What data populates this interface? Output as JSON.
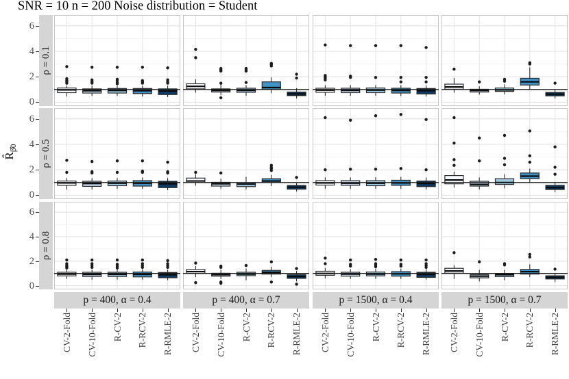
{
  "title": "SNR = 10 n = 200 Noise distribution = Student",
  "ylabel": {
    "base": "R̂",
    "sub": "β̂0"
  },
  "chart_data": {
    "type": "boxplot",
    "title": "SNR = 10 n = 200 Noise distribution = Student",
    "ylabel": "R̂_β̂0",
    "facet_row_variable": "ρ",
    "facet_col_variable": "p, α",
    "row_facets": [
      "ρ = 0.1",
      "ρ = 0.5",
      "ρ = 0.8"
    ],
    "col_facets": [
      "p = 400, α = 0.4",
      "p = 400, α = 0.7",
      "p = 1500, α = 0.4",
      "p = 1500, α = 0.7"
    ],
    "methods": [
      "CV-2-Fold",
      "CV-10-Fold",
      "R-CV-2",
      "R-RCV-2",
      "R-RMLE-2"
    ],
    "box_fills": [
      "#f7fbff",
      "#c6dbef",
      "#9ecae1",
      "#4292c6",
      "#0d3a66"
    ],
    "box_border": "#2a2a2a",
    "outlier_color": "#1c1c1c",
    "reference_line": 1,
    "yticks": [
      0,
      2,
      4,
      6
    ],
    "ylim": [
      -0.3,
      6.85
    ],
    "grid": "major+minor",
    "box_keys": [
      "q1",
      "median",
      "q3",
      "whisker_low",
      "whisker_high",
      "outliers"
    ],
    "panels": [
      {
        "row": 0,
        "col": 0,
        "boxes": [
          [
            0.75,
            0.97,
            1.12,
            0.45,
            1.3,
            [
              1.5,
              1.6,
              1.7,
              1.85,
              2.8
            ]
          ],
          [
            0.72,
            0.9,
            1.05,
            0.5,
            1.3,
            [
              1.5,
              1.6,
              1.75,
              2.75
            ]
          ],
          [
            0.72,
            0.92,
            1.08,
            0.5,
            1.3,
            [
              1.45,
              1.55,
              1.7,
              1.8,
              2.75
            ]
          ],
          [
            0.68,
            0.9,
            1.08,
            0.45,
            1.3,
            [
              1.5,
              1.6,
              1.7,
              2.75
            ]
          ],
          [
            0.6,
            0.88,
            1.05,
            0.4,
            1.3,
            [
              1.5,
              1.6,
              1.75,
              2.7
            ]
          ]
        ]
      },
      {
        "row": 0,
        "col": 1,
        "boxes": [
          [
            1.05,
            1.25,
            1.45,
            0.75,
            1.8,
            [
              3.5,
              4.15
            ]
          ],
          [
            0.8,
            0.92,
            1.05,
            0.55,
            1.4,
            [
              0.35,
              1.5,
              2.45,
              2.55,
              2.65
            ]
          ],
          [
            0.78,
            0.93,
            1.1,
            0.5,
            1.35,
            [
              1.55,
              2.45,
              2.55,
              2.65
            ]
          ],
          [
            1.0,
            1.15,
            1.6,
            0.7,
            1.95,
            [
              2.85,
              2.95,
              3.05
            ]
          ],
          [
            0.52,
            0.65,
            0.8,
            0.3,
            1.1,
            [
              1.9,
              2.2
            ]
          ]
        ]
      },
      {
        "row": 0,
        "col": 2,
        "boxes": [
          [
            0.78,
            0.95,
            1.1,
            0.5,
            1.35,
            [
              1.75,
              1.9,
              2.0,
              2.1,
              4.5
            ]
          ],
          [
            0.75,
            0.93,
            1.1,
            0.5,
            1.35,
            [
              1.95,
              2.05,
              4.45
            ]
          ],
          [
            0.75,
            0.95,
            1.12,
            0.5,
            1.35,
            [
              1.95,
              4.45
            ]
          ],
          [
            0.72,
            0.93,
            1.1,
            0.48,
            1.35,
            [
              1.6,
              1.95,
              4.45
            ]
          ],
          [
            0.65,
            0.9,
            1.08,
            0.45,
            1.32,
            [
              1.6,
              1.95,
              4.3
            ]
          ]
        ]
      },
      {
        "row": 0,
        "col": 3,
        "boxes": [
          [
            1.02,
            1.2,
            1.42,
            0.75,
            1.9,
            [
              2.6
            ]
          ],
          [
            0.8,
            0.92,
            1.02,
            0.6,
            1.25,
            [
              1.6
            ]
          ],
          [
            0.85,
            0.97,
            1.12,
            0.62,
            1.4,
            [
              1.65,
              1.8
            ]
          ],
          [
            1.35,
            1.6,
            1.88,
            1.0,
            2.75,
            [
              3.0,
              3.1
            ]
          ],
          [
            0.5,
            0.63,
            0.77,
            0.3,
            1.0,
            [
              1.5
            ]
          ]
        ]
      },
      {
        "row": 1,
        "col": 0,
        "boxes": [
          [
            0.78,
            0.97,
            1.12,
            0.45,
            1.35,
            [
              1.8,
              2.75
            ]
          ],
          [
            0.7,
            0.92,
            1.1,
            0.45,
            1.35,
            [
              1.75,
              1.85,
              2.65
            ]
          ],
          [
            0.75,
            0.95,
            1.12,
            0.5,
            1.35,
            [
              1.8,
              2.7
            ]
          ],
          [
            0.72,
            0.95,
            1.15,
            0.5,
            1.4,
            [
              1.8,
              1.9,
              2.7
            ]
          ],
          [
            0.6,
            0.9,
            1.1,
            0.4,
            1.35,
            [
              1.75,
              1.85,
              2.6
            ]
          ]
        ]
      },
      {
        "row": 1,
        "col": 1,
        "boxes": [
          [
            1.0,
            1.12,
            1.35,
            0.75,
            1.65,
            [
              1.8
            ]
          ],
          [
            0.72,
            0.9,
            1.02,
            0.5,
            1.3,
            [
              1.75
            ]
          ],
          [
            0.68,
            0.88,
            1.0,
            0.45,
            1.45,
            []
          ],
          [
            1.0,
            1.12,
            1.3,
            0.72,
            1.6,
            [
              1.95,
              2.1,
              2.2,
              2.35
            ]
          ],
          [
            0.48,
            0.63,
            0.77,
            0.3,
            0.95,
            [
              1.4
            ]
          ]
        ]
      },
      {
        "row": 1,
        "col": 2,
        "boxes": [
          [
            0.8,
            0.97,
            1.15,
            0.5,
            1.4,
            [
              2.0,
              6.1
            ]
          ],
          [
            0.78,
            0.95,
            1.15,
            0.5,
            1.4,
            [
              2.05,
              5.9
            ]
          ],
          [
            0.75,
            0.95,
            1.15,
            0.5,
            1.42,
            [
              2.05,
              6.25
            ]
          ],
          [
            0.78,
            0.97,
            1.18,
            0.5,
            1.45,
            [
              2.1,
              6.35
            ]
          ],
          [
            0.68,
            0.93,
            1.12,
            0.45,
            1.4,
            [
              2.0,
              5.95
            ]
          ]
        ]
      },
      {
        "row": 1,
        "col": 3,
        "boxes": [
          [
            0.9,
            1.2,
            1.55,
            0.6,
            1.85,
            [
              2.35,
              2.8,
              4.1,
              6.1
            ]
          ],
          [
            0.72,
            0.85,
            1.1,
            0.45,
            1.4,
            [
              2.7,
              4.5
            ]
          ],
          [
            0.85,
            1.0,
            1.3,
            0.55,
            1.65,
            [
              2.4,
              2.9,
              4.7
            ]
          ],
          [
            1.3,
            1.5,
            1.75,
            1.0,
            2.1,
            [
              2.6,
              3.1,
              5.05
            ]
          ],
          [
            0.45,
            0.6,
            0.78,
            0.25,
            1.05,
            [
              1.65,
              2.2,
              3.8
            ]
          ]
        ]
      },
      {
        "row": 2,
        "col": 0,
        "boxes": [
          [
            0.8,
            0.95,
            1.1,
            0.55,
            1.3,
            [
              1.45,
              1.55,
              1.65,
              1.8,
              2.1
            ]
          ],
          [
            0.75,
            0.92,
            1.1,
            0.5,
            1.3,
            [
              1.5,
              1.65,
              1.8,
              2.1
            ]
          ],
          [
            0.75,
            0.93,
            1.1,
            0.5,
            1.32,
            [
              1.45,
              1.6,
              1.75,
              2.1
            ]
          ],
          [
            0.72,
            0.93,
            1.12,
            0.5,
            1.35,
            [
              1.5,
              1.65,
              1.8,
              2.1
            ]
          ],
          [
            0.65,
            0.9,
            1.08,
            0.45,
            1.3,
            [
              1.5,
              1.65,
              1.8,
              2.05
            ]
          ]
        ]
      },
      {
        "row": 2,
        "col": 1,
        "boxes": [
          [
            1.0,
            1.15,
            1.32,
            0.7,
            1.6,
            [
              0.25,
              1.85
            ]
          ],
          [
            0.78,
            0.9,
            1.02,
            0.55,
            1.3,
            [
              0.2,
              0.3,
              1.5,
              1.6
            ]
          ],
          [
            0.82,
            0.95,
            1.1,
            0.45,
            1.4,
            [
              1.65
            ]
          ],
          [
            0.95,
            1.1,
            1.25,
            0.7,
            1.55,
            [
              0.3,
              1.95
            ]
          ],
          [
            0.6,
            0.75,
            0.9,
            0.35,
            1.2,
            [
              0.12,
              1.4
            ]
          ]
        ]
      },
      {
        "row": 2,
        "col": 2,
        "boxes": [
          [
            0.85,
            1.0,
            1.18,
            0.6,
            1.45,
            [
              1.8,
              2.25
            ]
          ],
          [
            0.78,
            0.95,
            1.1,
            0.55,
            1.35,
            [
              1.6,
              1.75,
              2.1
            ]
          ],
          [
            0.8,
            0.95,
            1.12,
            0.55,
            1.4,
            [
              1.55,
              1.7,
              1.8,
              2.15
            ]
          ],
          [
            0.78,
            0.97,
            1.15,
            0.55,
            1.4,
            [
              1.6,
              1.75,
              2.1
            ]
          ],
          [
            0.68,
            0.92,
            1.1,
            0.5,
            1.35,
            [
              1.5,
              1.65,
              1.8,
              2.1
            ]
          ]
        ]
      },
      {
        "row": 2,
        "col": 3,
        "boxes": [
          [
            1.02,
            1.2,
            1.42,
            0.55,
            1.67,
            [
              2.7
            ]
          ],
          [
            0.64,
            0.78,
            0.9,
            0.35,
            1.3,
            [
              1.95
            ]
          ],
          [
            0.74,
            0.9,
            0.99,
            0.45,
            1.3,
            [
              1.7,
              1.8
            ]
          ],
          [
            0.95,
            1.15,
            1.33,
            0.7,
            1.75,
            [
              2.35,
              2.55
            ]
          ],
          [
            0.55,
            0.68,
            0.81,
            0.3,
            1.0,
            [
              1.35
            ]
          ]
        ]
      }
    ]
  }
}
